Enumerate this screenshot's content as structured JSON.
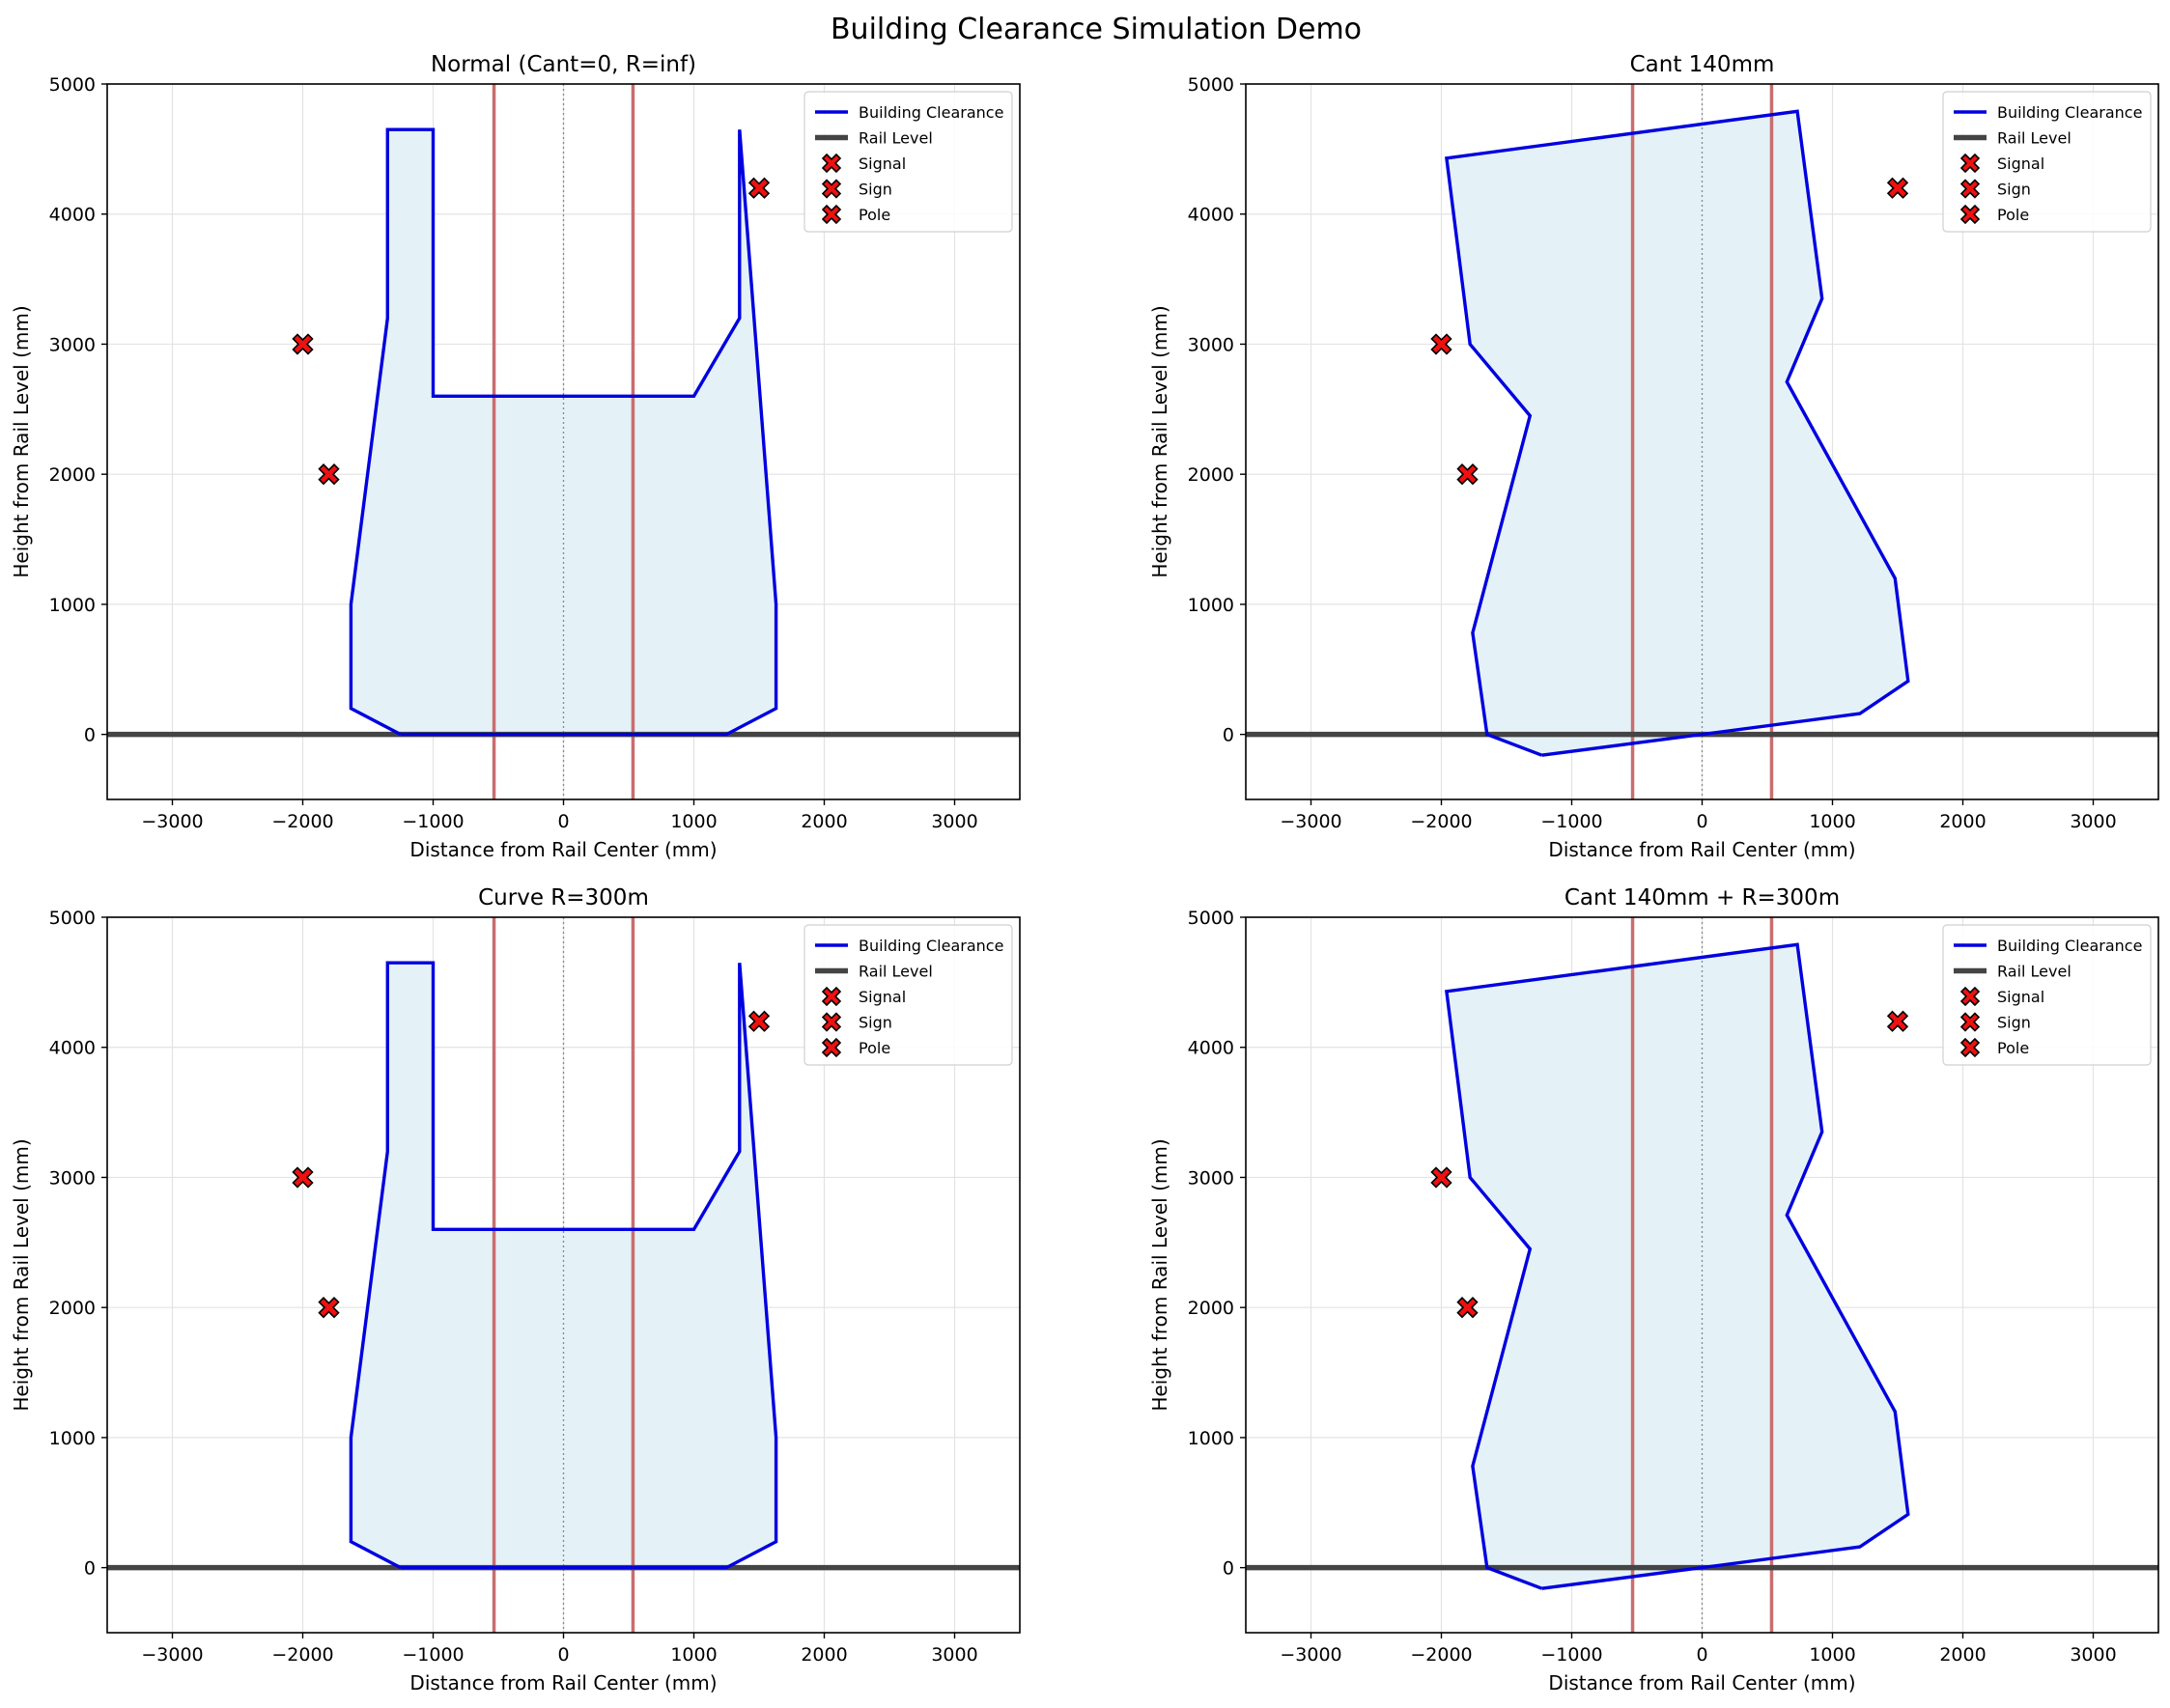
{
  "figure": {
    "title": "Building Clearance Simulation Demo"
  },
  "chart_data": [
    {
      "type": "line",
      "title": "Normal (Cant=0, R=inf)",
      "xlabel": "Distance from Rail Center (mm)",
      "ylabel": "Height from Rail Level (mm)",
      "xlim": [
        -3500,
        3500
      ],
      "ylim": [
        -500,
        5000
      ],
      "xticks": [
        -3000,
        -2000,
        -1000,
        0,
        1000,
        2000,
        3000
      ],
      "yticks": [
        0,
        1000,
        2000,
        3000,
        4000,
        5000
      ],
      "grid": true,
      "legend_position": "top-right",
      "clearance": {
        "name": "Building Clearance",
        "color": "#0000e0",
        "fill": "#e4f2f7",
        "x": [
          -1250,
          -1630,
          -1630,
          -1350,
          -1350,
          -1000,
          -1000,
          1000,
          1000,
          1350,
          1350,
          1630,
          1630,
          1250,
          -1250
        ],
        "y": [
          0,
          200,
          1000,
          3200,
          4650,
          4650,
          2600,
          2600,
          2600,
          3200,
          4650,
          1000,
          200,
          0,
          0
        ]
      },
      "rail_level": {
        "name": "Rail Level",
        "y": 0,
        "color": "#444444"
      },
      "rails": {
        "x": [
          -533,
          533
        ],
        "color": "#c86e6e"
      },
      "center_line": {
        "x": 0
      },
      "obstacles": [
        {
          "name": "Signal",
          "x": -2000,
          "y": 3000
        },
        {
          "name": "Sign",
          "x": -1800,
          "y": 2000
        },
        {
          "name": "Pole",
          "x": 1500,
          "y": 4200
        }
      ]
    },
    {
      "type": "line",
      "title": "Cant 140mm",
      "xlabel": "Distance from Rail Center (mm)",
      "ylabel": "Height from Rail Level (mm)",
      "xlim": [
        -3500,
        3500
      ],
      "ylim": [
        -500,
        5000
      ],
      "xticks": [
        -3000,
        -2000,
        -1000,
        0,
        1000,
        2000,
        3000
      ],
      "yticks": [
        0,
        1000,
        2000,
        3000,
        4000,
        5000
      ],
      "grid": true,
      "legend_position": "top-right",
      "clearance": {
        "name": "Building Clearance",
        "color": "#0000e0",
        "fill": "#e4f2f7",
        "x": [
          -1230,
          -1650,
          -1760,
          -1320,
          -1780,
          -1960,
          730,
          920,
          650,
          1480,
          1580,
          1210,
          0,
          -1230
        ],
        "y": [
          -160,
          0,
          780,
          2450,
          3000,
          4430,
          4790,
          3350,
          2710,
          1200,
          410,
          160,
          0,
          -160
        ]
      },
      "rail_level": {
        "name": "Rail Level",
        "y": 0,
        "color": "#444444"
      },
      "rails": {
        "x": [
          -533,
          533
        ],
        "color": "#c86e6e"
      },
      "center_line": {
        "x": 0
      },
      "obstacles": [
        {
          "name": "Signal",
          "x": -2000,
          "y": 3000
        },
        {
          "name": "Sign",
          "x": -1800,
          "y": 2000
        },
        {
          "name": "Pole",
          "x": 1500,
          "y": 4200
        }
      ]
    },
    {
      "type": "line",
      "title": "Curve R=300m",
      "xlabel": "Distance from Rail Center (mm)",
      "ylabel": "Height from Rail Level (mm)",
      "xlim": [
        -3500,
        3500
      ],
      "ylim": [
        -500,
        5000
      ],
      "xticks": [
        -3000,
        -2000,
        -1000,
        0,
        1000,
        2000,
        3000
      ],
      "yticks": [
        0,
        1000,
        2000,
        3000,
        4000,
        5000
      ],
      "grid": true,
      "legend_position": "top-right",
      "clearance": {
        "name": "Building Clearance",
        "color": "#0000e0",
        "fill": "#e4f2f7",
        "x": [
          -1250,
          -1630,
          -1630,
          -1350,
          -1350,
          -1000,
          -1000,
          1000,
          1000,
          1350,
          1350,
          1630,
          1630,
          1250,
          -1250
        ],
        "y": [
          0,
          200,
          1000,
          3200,
          4650,
          4650,
          2600,
          2600,
          2600,
          3200,
          4650,
          1000,
          200,
          0,
          0
        ]
      },
      "rail_level": {
        "name": "Rail Level",
        "y": 0,
        "color": "#444444"
      },
      "rails": {
        "x": [
          -533,
          533
        ],
        "color": "#c86e6e"
      },
      "center_line": {
        "x": 0
      },
      "obstacles": [
        {
          "name": "Signal",
          "x": -2000,
          "y": 3000
        },
        {
          "name": "Sign",
          "x": -1800,
          "y": 2000
        },
        {
          "name": "Pole",
          "x": 1500,
          "y": 4200
        }
      ]
    },
    {
      "type": "line",
      "title": "Cant 140mm + R=300m",
      "xlabel": "Distance from Rail Center (mm)",
      "ylabel": "Height from Rail Level (mm)",
      "xlim": [
        -3500,
        3500
      ],
      "ylim": [
        -500,
        5000
      ],
      "xticks": [
        -3000,
        -2000,
        -1000,
        0,
        1000,
        2000,
        3000
      ],
      "yticks": [
        0,
        1000,
        2000,
        3000,
        4000,
        5000
      ],
      "grid": true,
      "legend_position": "top-right",
      "clearance": {
        "name": "Building Clearance",
        "color": "#0000e0",
        "fill": "#e4f2f7",
        "x": [
          -1230,
          -1650,
          -1760,
          -1320,
          -1780,
          -1960,
          730,
          920,
          650,
          1480,
          1580,
          1210,
          0,
          -1230
        ],
        "y": [
          -160,
          0,
          780,
          2450,
          3000,
          4430,
          4790,
          3350,
          2710,
          1200,
          410,
          160,
          0,
          -160
        ]
      },
      "rail_level": {
        "name": "Rail Level",
        "y": 0,
        "color": "#444444"
      },
      "rails": {
        "x": [
          -533,
          533
        ],
        "color": "#c86e6e"
      },
      "center_line": {
        "x": 0
      },
      "obstacles": [
        {
          "name": "Signal",
          "x": -2000,
          "y": 3000
        },
        {
          "name": "Sign",
          "x": -1800,
          "y": 2000
        },
        {
          "name": "Pole",
          "x": 1500,
          "y": 4200
        }
      ]
    }
  ]
}
